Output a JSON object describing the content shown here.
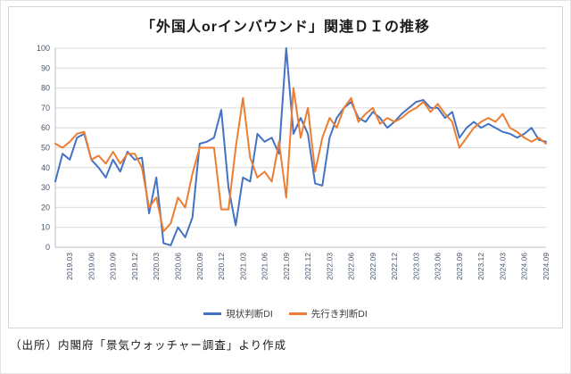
{
  "source_note": "（出所）内閣府「景気ウォッチャー調査」より作成",
  "chart_data": {
    "type": "line",
    "title": "「外国人orインバウンド」関連ＤＩの推移",
    "xlabel": "",
    "ylabel": "",
    "ylim": [
      0,
      100
    ],
    "ytick_step": 10,
    "grid": "horizontal",
    "legend_position": "bottom",
    "categories": [
      "2019.01",
      "2019.02",
      "2019.03",
      "2019.04",
      "2019.05",
      "2019.06",
      "2019.07",
      "2019.08",
      "2019.09",
      "2019.10",
      "2019.11",
      "2019.12",
      "2020.01",
      "2020.02",
      "2020.03",
      "2020.04",
      "2020.05",
      "2020.06",
      "2020.07",
      "2020.08",
      "2020.09",
      "2020.10",
      "2020.11",
      "2020.12",
      "2021.01",
      "2021.02",
      "2021.03",
      "2021.04",
      "2021.05",
      "2021.06",
      "2021.07",
      "2021.08",
      "2021.09",
      "2021.10",
      "2021.11",
      "2021.12",
      "2022.01",
      "2022.02",
      "2022.03",
      "2022.04",
      "2022.05",
      "2022.06",
      "2022.07",
      "2022.08",
      "2022.09",
      "2022.10",
      "2022.11",
      "2022.12",
      "2023.01",
      "2023.02",
      "2023.03",
      "2023.04",
      "2023.05",
      "2023.06",
      "2023.07",
      "2023.08",
      "2023.09",
      "2023.10",
      "2023.11",
      "2023.12",
      "2024.01",
      "2024.02",
      "2024.03",
      "2024.04",
      "2024.05",
      "2024.06",
      "2024.07",
      "2024.08",
      "2024.09"
    ],
    "labeled_tick_suffixes": [
      "03",
      "06",
      "09",
      "12"
    ],
    "series": [
      {
        "name": "現状判断DI",
        "color": "#4472C4",
        "values": [
          33,
          47,
          44,
          55,
          57,
          44,
          40,
          35,
          44,
          38,
          48,
          44,
          45,
          17,
          35,
          2,
          1,
          10,
          5,
          15,
          52,
          53,
          55,
          69,
          30,
          11,
          35,
          33,
          57,
          53,
          55,
          47,
          100,
          57,
          65,
          57,
          32,
          31,
          55,
          65,
          70,
          73,
          65,
          63,
          68,
          65,
          60,
          63,
          67,
          70,
          73,
          74,
          70,
          70,
          65,
          68,
          55,
          60,
          63,
          60,
          62,
          60,
          58,
          57,
          55,
          57,
          60,
          54,
          53
        ]
      },
      {
        "name": "先行き判断DI",
        "color": "#ED7D31",
        "values": [
          52,
          50,
          53,
          57,
          58,
          44,
          46,
          42,
          48,
          42,
          47,
          47,
          40,
          20,
          25,
          8,
          12,
          25,
          20,
          37,
          50,
          50,
          50,
          19,
          19,
          50,
          75,
          45,
          35,
          38,
          33,
          53,
          25,
          80,
          55,
          70,
          38,
          55,
          65,
          60,
          70,
          75,
          63,
          67,
          70,
          62,
          65,
          63,
          65,
          68,
          70,
          73,
          68,
          72,
          67,
          63,
          50,
          55,
          60,
          63,
          65,
          63,
          67,
          60,
          58,
          55,
          53,
          55,
          52
        ]
      }
    ]
  }
}
